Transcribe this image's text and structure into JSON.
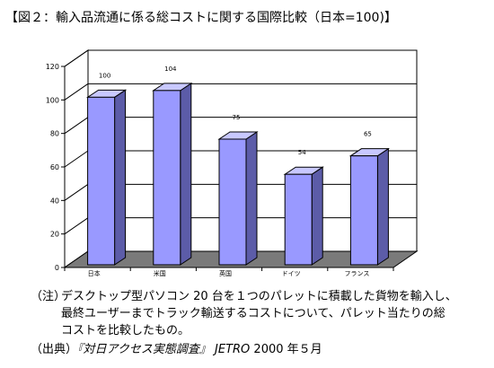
{
  "title": "【図２：輸入品流通に係る総コストに関する国際比較（日本=100)】",
  "chart_data": {
    "type": "bar",
    "categories": [
      "日本",
      "米国",
      "英国",
      "ドイツ",
      "フランス"
    ],
    "values": [
      100,
      104,
      75,
      54,
      65
    ],
    "data_labels": [
      "100",
      "104",
      "75",
      "54",
      "65"
    ],
    "ylim": [
      0,
      120
    ],
    "yticks": [
      0,
      20,
      40,
      60,
      80,
      100,
      120
    ],
    "grid": true,
    "three_d": true,
    "bar_color": "#9999ff",
    "bar_side_color": "#5c5ca8",
    "bar_top_color": "#c8c8ff",
    "floor_color": "#7a7a7a",
    "xlabel": "",
    "ylabel": ""
  },
  "note": {
    "label": "（注）",
    "text": "デスクトップ型パソコン 20 台を１つのパレットに積載した貨物を輸入し、\n最終ユーザーまでトラック輸送するコストについて、パレット当たりの総\nコストを比較したもの。"
  },
  "source": {
    "label": "（出典）",
    "document": "『対日アクセス実態調査』",
    "publisher": "JETRO",
    "date": "2000 年５月"
  }
}
